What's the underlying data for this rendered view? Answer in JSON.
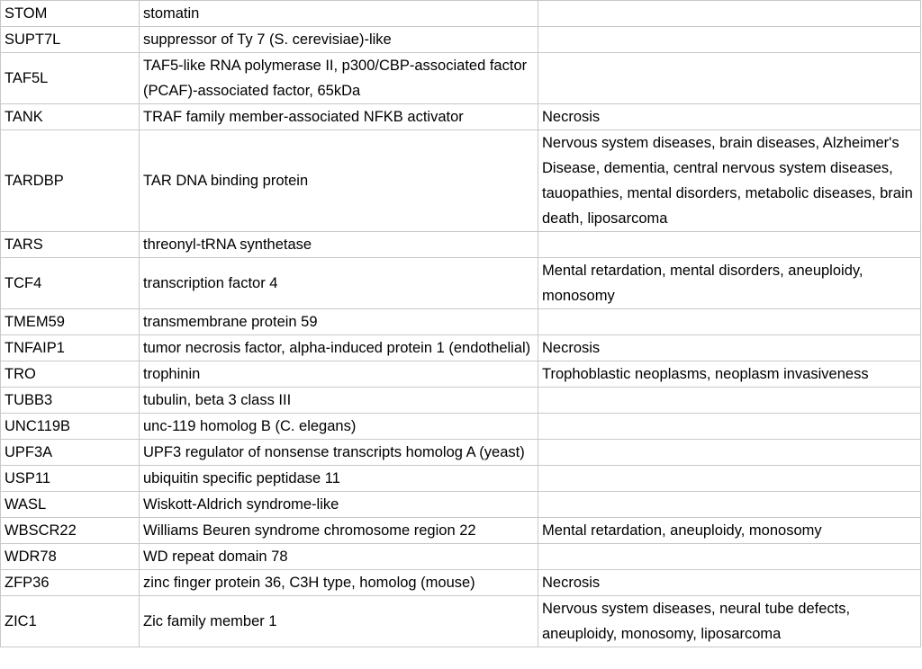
{
  "table": {
    "rows": [
      {
        "gene": "STOM",
        "description": "stomatin",
        "disease": ""
      },
      {
        "gene": "SUPT7L",
        "description": "suppressor of Ty 7 (S. cerevisiae)-like",
        "disease": ""
      },
      {
        "gene": "TAF5L",
        "description": "TAF5-like RNA polymerase II, p300/CBP-associated factor (PCAF)-associated factor, 65kDa",
        "disease": ""
      },
      {
        "gene": "TANK",
        "description": "TRAF family member-associated NFKB activator",
        "disease": "Necrosis"
      },
      {
        "gene": "TARDBP",
        "description": "TAR DNA binding protein",
        "disease": "Nervous system diseases, brain diseases, Alzheimer's Disease, dementia, central nervous system diseases, tauopathies, mental disorders, metabolic diseases, brain death, liposarcoma"
      },
      {
        "gene": "TARS",
        "description": "threonyl-tRNA synthetase",
        "disease": ""
      },
      {
        "gene": "TCF4",
        "description": "transcription factor 4",
        "disease": "Mental retardation, mental disorders, aneuploidy, monosomy"
      },
      {
        "gene": "TMEM59",
        "description": "transmembrane protein 59",
        "disease": ""
      },
      {
        "gene": "TNFAIP1",
        "description": "tumor necrosis factor, alpha-induced protein 1 (endothelial)",
        "disease": "Necrosis"
      },
      {
        "gene": "TRO",
        "description": "trophinin",
        "disease": "Trophoblastic neoplasms, neoplasm invasiveness"
      },
      {
        "gene": "TUBB3",
        "description": "tubulin, beta 3 class III",
        "disease": ""
      },
      {
        "gene": "UNC119B",
        "description": "unc-119 homolog B (C. elegans)",
        "disease": ""
      },
      {
        "gene": "UPF3A",
        "description": "UPF3 regulator of nonsense transcripts homolog A (yeast)",
        "disease": ""
      },
      {
        "gene": "USP11",
        "description": "ubiquitin specific peptidase 11",
        "disease": ""
      },
      {
        "gene": "WASL",
        "description": "Wiskott-Aldrich syndrome-like",
        "disease": ""
      },
      {
        "gene": "WBSCR22",
        "description": "Williams Beuren syndrome chromosome region 22",
        "disease": "Mental retardation, aneuploidy, monosomy"
      },
      {
        "gene": "WDR78",
        "description": "WD repeat domain 78",
        "disease": ""
      },
      {
        "gene": "ZFP36",
        "description": "zinc finger protein 36, C3H type, homolog (mouse)",
        "disease": "Necrosis"
      },
      {
        "gene": "ZIC1",
        "description": "Zic family member 1",
        "disease": "Nervous system diseases, neural tube defects, aneuploidy, monosomy, liposarcoma"
      }
    ]
  }
}
